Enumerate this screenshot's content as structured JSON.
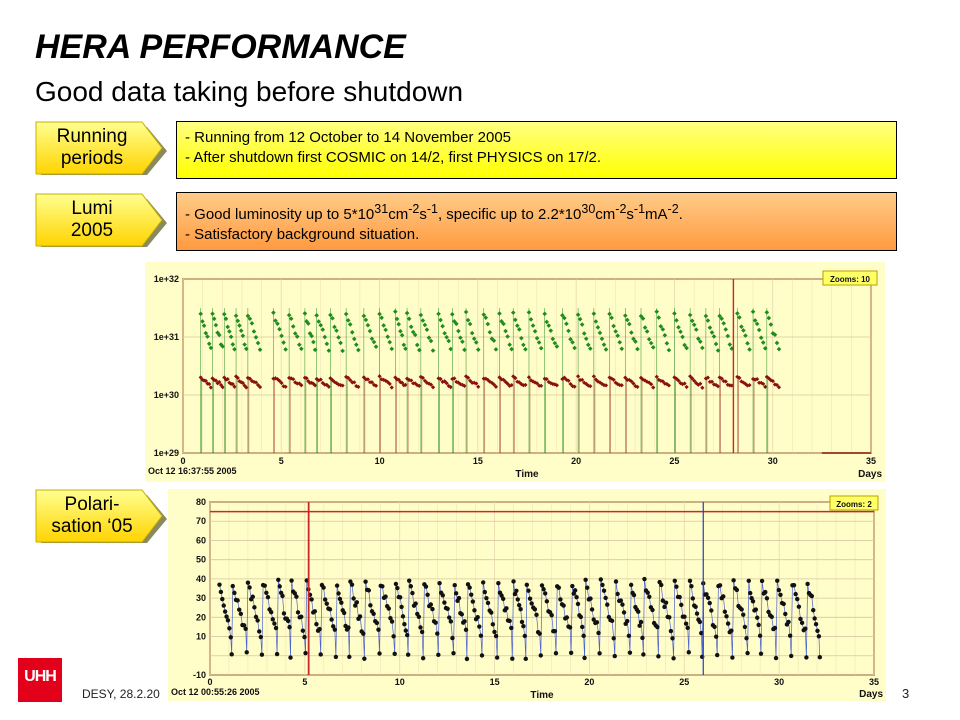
{
  "header": {
    "title": "HERA PERFORMANCE",
    "subtitle": "Good data taking before shutdown"
  },
  "tags": {
    "running": [
      "Running",
      "periods"
    ],
    "lumi": [
      "Lumi",
      "2005"
    ],
    "polari": [
      "Polari-",
      "sation ‘05"
    ]
  },
  "boxes": {
    "running_lines": [
      "- Running from 12 October to 14 November 2005",
      "- After shutdown first COSMIC on 14/2, first PHYSICS on 17/2."
    ],
    "lumi": {
      "l1_a": "- Good luminosity up to 5*10",
      "l1_sup1": "31",
      "l1_b": "cm",
      "l1_sup2": "-2",
      "l1_c": "s",
      "l1_sup3": "-1",
      "l1_d": ", specific up to 2.2*10",
      "l1_sup4": "30",
      "l1_e": "cm",
      "l1_sup5": "-2",
      "l1_f": "s",
      "l1_sup6": "-1",
      "l1_g": "mA",
      "l1_sup7": "-2",
      "l1_h": ".",
      "line2": "- Satisfactory background situation."
    }
  },
  "footer": {
    "left": "DESY, 28.2.20",
    "page": "3",
    "logo_text": "UHH"
  },
  "colors": {
    "chart_bg": "#fffdc8",
    "plot_border": "#c8a070",
    "green": "#1e8c1e",
    "darkred": "#8b1010",
    "blue": "#1e3cd2",
    "black": "#111111",
    "zoom_bg": "#ffff66",
    "red_line": "#c82828"
  },
  "chart_data": [
    {
      "type": "scatter",
      "scale": "log",
      "xlabel": "Time",
      "xunit": "Days",
      "timestamp": "Oct 12 16:37:55 2005",
      "zoom_label": "Zooms: 10",
      "xlim": [
        0,
        35
      ],
      "ylim_exp": [
        29,
        32
      ],
      "xticks": [
        "0",
        "5",
        "10",
        "15",
        "20",
        "25",
        "30",
        "35"
      ],
      "yticks": [
        "1e+29",
        "1e+30",
        "1e+31",
        "1e+32"
      ],
      "marker_x": 28,
      "active_end": 32.5,
      "series": [
        {
          "key": "luminosity",
          "color": "#1e8c1e",
          "fill_start_exp": 31.4,
          "fill_end_exp": 30.8
        },
        {
          "key": "specific",
          "color": "#8b1010",
          "fill_start_exp": 30.3,
          "fill_end_exp": 30.15
        }
      ],
      "fill_starts": [
        0.9,
        1.5,
        2.1,
        2.7,
        3.3,
        4.6,
        5.4,
        6.2,
        6.8,
        7.5,
        8.3,
        9.2,
        10.0,
        10.8,
        11.4,
        12.1,
        13.0,
        13.7,
        14.4,
        15.3,
        16.1,
        16.8,
        17.6,
        18.4,
        19.3,
        20.1,
        20.9,
        21.7,
        22.5,
        23.3,
        24.1,
        25.0,
        25.8,
        26.6,
        27.3,
        28.2,
        29.0,
        29.7
      ]
    },
    {
      "type": "scatter",
      "xlabel": "Time",
      "xunit": "Days",
      "timestamp": "Oct 12 00:55:26 2005",
      "zoom_label": "Zooms: 2",
      "xlim": [
        0,
        35
      ],
      "ylim": [
        -10,
        80
      ],
      "xticks": [
        "0",
        "5",
        "10",
        "15",
        "20",
        "25",
        "30",
        "35"
      ],
      "yticks": [
        "-10",
        "10",
        "20",
        "30",
        "40",
        "50",
        "60",
        "70",
        "80"
      ],
      "hline_y": 75,
      "marker_x": [
        5.2,
        26.0
      ],
      "active_end": 32.5,
      "series": [
        {
          "key": "polarisation",
          "color": "#111111",
          "peak": 40,
          "min": -2
        },
        {
          "key": "fit",
          "color": "#1e3cd2"
        }
      ],
      "fill_starts": [
        0.5,
        1.2,
        2.0,
        2.8,
        3.6,
        4.3,
        5.1,
        5.9,
        6.7,
        7.4,
        8.2,
        9.0,
        9.8,
        10.5,
        11.3,
        12.1,
        12.9,
        13.6,
        14.4,
        15.2,
        16.0,
        16.7,
        17.5,
        18.3,
        19.1,
        19.8,
        20.6,
        21.4,
        22.2,
        22.9,
        23.7,
        24.5,
        25.3,
        26.0,
        26.8,
        27.6,
        28.4,
        29.1,
        29.9,
        30.7,
        31.5
      ]
    }
  ]
}
